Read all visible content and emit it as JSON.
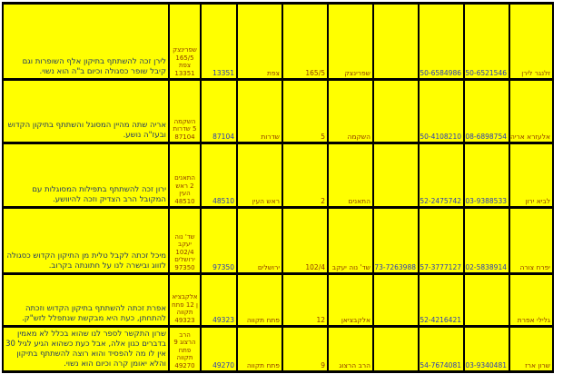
{
  "app": {
    "type": "spreadsheet-table",
    "language": "hebrew",
    "direction": "rtl"
  },
  "colors": {
    "cell_bg": "#FFFF00",
    "gridline": "#000000",
    "testimonial_text": "#1F3864",
    "detail_text": "#8F3B00",
    "number_text": "#2A3BB8",
    "page_bg": "#FFFFFF"
  },
  "table": {
    "rows": [
      {
        "name": "זלנגר לירן",
        "phone1": "050-6521546",
        "phone2": "050-6584986",
        "phone3": "",
        "street": "שפרינצק",
        "house": "165/5",
        "city": "צפת",
        "zip": "13351",
        "address": "שפרינצק 165/5 צפת 13351",
        "testimonial": "לירן זכה להשתתף בתיקון אלף השופרות וגם קיבל שופר כסגולה וכיום ב\"ה הוא נשוי."
      },
      {
        "name": "אלעזרא אריה",
        "phone1": "08-6898754",
        "phone2": "050-4108210",
        "phone3": "",
        "street": "השקמה",
        "house": "5",
        "city": "שדרות",
        "zip": "87104",
        "address": "השקמה 5 שדרות 87104",
        "testimonial": "אריה שתה מהיין המסוגל והשתתף בתיקון הקדוש ובעז\"ה נושע."
      },
      {
        "name": "לביא ירון",
        "phone1": "03-9388533",
        "phone2": "052-2475742",
        "phone3": "",
        "street": "התאנים",
        "house": "2",
        "city": "ראש העין",
        "zip": "48510",
        "address": "התאנים 2 ראש העין 48510",
        "testimonial": "ירון זכה להשתתף בתפילות המסוגלות עם המקובל הרב הצדיק וזכה להיוושע."
      },
      {
        "name": "יפרח צורה",
        "phone1": "02-5838914",
        "phone2": "057-3777127",
        "phone3": "073-7263988",
        "street": "שד' נוה יעקב",
        "house": "102/4",
        "city": "ירושלים",
        "zip": "97350",
        "address": "שד' נוה יעקב 102/4 ירושלים 97350",
        "testimonial": "מיכל זכתה לקבל טלית מן התיקון הקדוש כסגולה לזווג ובישרה לנו על חתונתה בקרוב."
      },
      {
        "name": "גלילי אפרת",
        "phone1": "",
        "phone2": "052-4216421",
        "phone3": "",
        "street": "אלקבציאן",
        "house": "12",
        "city": "פתח תקווה",
        "zip": "49323",
        "address": "אלקבציאן 12 פתח תקווה 49323",
        "testimonial": "אפרת זכתה להשתתף בתיקון הקדוש וזכתה להתחתן, כעת היא מבקשת שנתפלל לזש\"ק."
      },
      {
        "name": "שרון ארז",
        "phone1": "03-9340481",
        "phone2": "054-7674081",
        "phone3": "",
        "street": "הרב הרצוג",
        "house": "9",
        "city": "פתח תקווה",
        "zip": "49270",
        "address": "הרב הרצוג 9 פתח תקווה 49270",
        "testimonial": "שרון התקשר לספר לנו שהוא בכלל לא מאמין בדברים כגון אלה, אבל כעת כשהוא הגיע לגיל 30 אין לו מה להפסיד והוא רוצה להשתתף בתיקון והלא יאומן קרה וכיום הוא נשוי."
      }
    ]
  }
}
